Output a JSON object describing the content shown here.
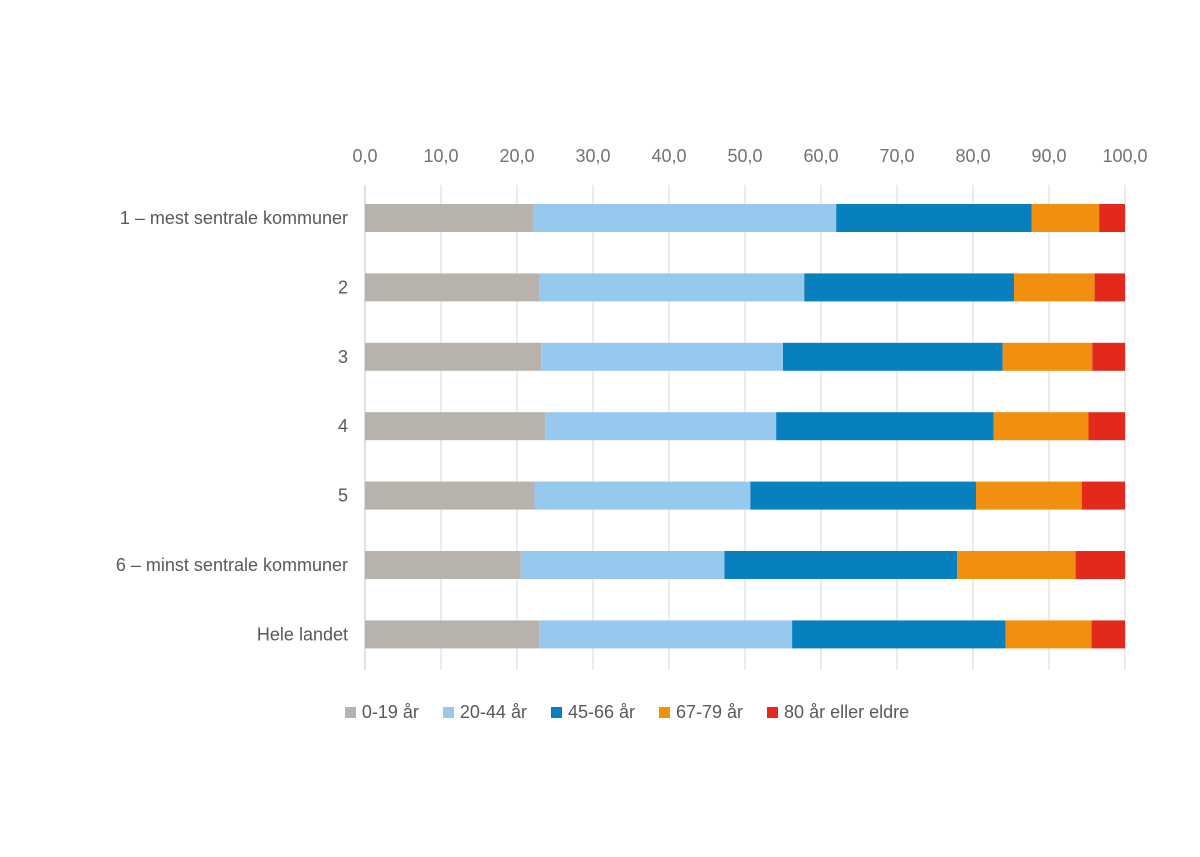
{
  "chart_data": {
    "type": "bar",
    "orientation": "horizontal",
    "stacked": true,
    "title": "",
    "xlabel": "",
    "ylabel": "",
    "xlim": [
      0,
      100
    ],
    "x_ticks": [
      "0,0",
      "10,0",
      "20,0",
      "30,0",
      "40,0",
      "50,0",
      "60,0",
      "70,0",
      "80,0",
      "90,0",
      "100,0"
    ],
    "x_axis_position": "top",
    "grid": true,
    "legend_position": "bottom",
    "categories": [
      "1 – mest sentrale kommuner",
      "2",
      "3",
      "4",
      "5",
      "6 – minst sentrale kommuner",
      "Hele landet"
    ],
    "series": [
      {
        "name": "0-19 år",
        "color": "#B8B2AD",
        "values": [
          22.1,
          23.0,
          23.2,
          23.7,
          22.3,
          20.5,
          22.9
        ]
      },
      {
        "name": "20-44 år",
        "color": "#97C8EE",
        "values": [
          39.9,
          34.8,
          31.8,
          30.4,
          28.4,
          26.8,
          33.3
        ]
      },
      {
        "name": "45-66 år",
        "color": "#0880BF",
        "values": [
          25.7,
          27.6,
          28.9,
          28.6,
          29.7,
          30.6,
          28.1
        ]
      },
      {
        "name": "67-79 år",
        "color": "#F0900E",
        "values": [
          8.9,
          10.6,
          11.8,
          12.5,
          13.9,
          15.6,
          11.3
        ]
      },
      {
        "name": "80 år eller eldre",
        "color": "#E3281C",
        "values": [
          3.4,
          4.0,
          4.3,
          4.8,
          5.7,
          6.5,
          4.4
        ]
      }
    ]
  }
}
